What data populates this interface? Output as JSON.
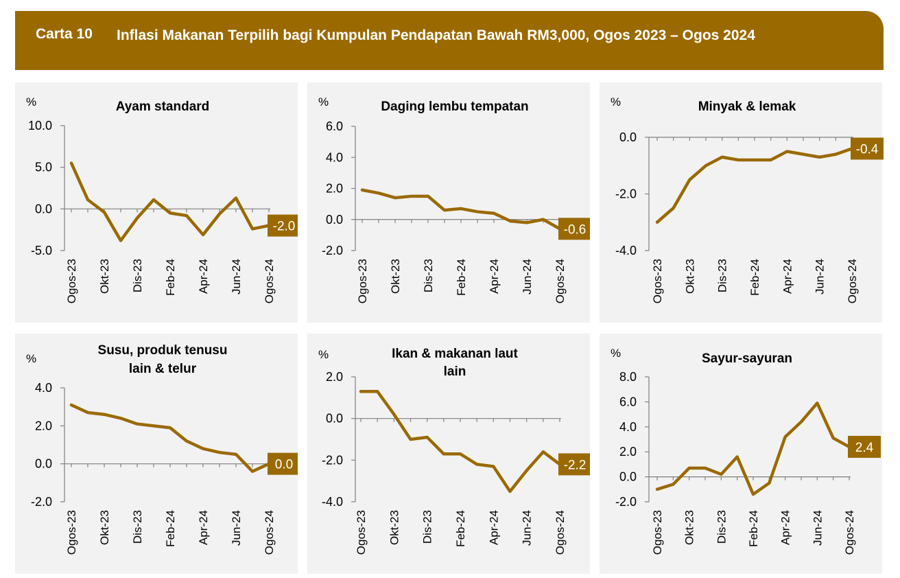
{
  "header": {
    "label": "Carta 10",
    "title": "Inflasi Makanan Terpilih bagi Kumpulan Pendapatan Bawah RM3,000, Ogos 2023 – Ogos 2024"
  },
  "colors": {
    "banner": "#9a6a00",
    "line": "#9a6a00",
    "panel": "#f2f2f2"
  },
  "chart_data": [
    {
      "type": "line",
      "title": "Ayam standard",
      "ylabel": "%",
      "ylim": [
        -5,
        10
      ],
      "yticks": [
        "10.0",
        "5.0",
        "0.0",
        "-5.0"
      ],
      "ytick_values": [
        10,
        5,
        0,
        -5
      ],
      "xtick_labels": [
        "Ogos-23",
        "Okt-23",
        "Dis-23",
        "Feb-24",
        "Apr-24",
        "Jun-24",
        "Ogos-24"
      ],
      "x": [
        "Ogos-23",
        "Sep-23",
        "Okt-23",
        "Nov-23",
        "Dis-23",
        "Jan-24",
        "Feb-24",
        "Mac-24",
        "Apr-24",
        "Mei-24",
        "Jun-24",
        "Jul-24",
        "Ogos-24"
      ],
      "values": [
        5.5,
        1.1,
        -0.4,
        -3.8,
        -1.1,
        1.1,
        -0.5,
        -0.8,
        -3.1,
        -0.6,
        1.3,
        -2.4,
        -2.0
      ],
      "last_label": "-2.0"
    },
    {
      "type": "line",
      "title": "Daging lembu tempatan",
      "ylabel": "%",
      "ylim": [
        -2,
        6
      ],
      "yticks": [
        "6.0",
        "4.0",
        "2.0",
        "0.0",
        "-2.0"
      ],
      "ytick_values": [
        6,
        4,
        2,
        0,
        -2
      ],
      "xtick_labels": [
        "Ogos-23",
        "Okt-23",
        "Dis-23",
        "Feb-24",
        "Apr-24",
        "Jun-24",
        "Ogos-24"
      ],
      "x": [
        "Ogos-23",
        "Sep-23",
        "Okt-23",
        "Nov-23",
        "Dis-23",
        "Jan-24",
        "Feb-24",
        "Mac-24",
        "Apr-24",
        "Mei-24",
        "Jun-24",
        "Jul-24",
        "Ogos-24"
      ],
      "values": [
        1.9,
        1.7,
        1.4,
        1.5,
        1.5,
        0.6,
        0.7,
        0.5,
        0.4,
        -0.1,
        -0.2,
        0.0,
        -0.6
      ],
      "last_label": "-0.6"
    },
    {
      "type": "line",
      "title": "Minyak & lemak",
      "ylabel": "%",
      "ylim": [
        -4,
        0
      ],
      "yticks": [
        "0.0",
        "-2.0",
        "-4.0"
      ],
      "ytick_values": [
        0,
        -2,
        -4
      ],
      "xtick_labels": [
        "Ogos-23",
        "Okt-23",
        "Dis-23",
        "Feb-24",
        "Apr-24",
        "Jun-24",
        "Ogos-24"
      ],
      "x": [
        "Ogos-23",
        "Sep-23",
        "Okt-23",
        "Nov-23",
        "Dis-23",
        "Jan-24",
        "Feb-24",
        "Mac-24",
        "Apr-24",
        "Mei-24",
        "Jun-24",
        "Jul-24",
        "Ogos-24"
      ],
      "values": [
        -3.0,
        -2.5,
        -1.5,
        -1.0,
        -0.7,
        -0.8,
        -0.8,
        -0.8,
        -0.5,
        -0.6,
        -0.7,
        -0.6,
        -0.4
      ],
      "last_label": "-0.4"
    },
    {
      "type": "line",
      "title": "Susu, produk tenusu lain & telur",
      "title_lines": [
        "Susu, produk tenusu",
        "lain & telur"
      ],
      "ylabel": "%",
      "ylim": [
        -2,
        4
      ],
      "yticks": [
        "4.0",
        "2.0",
        "0.0",
        "-2.0"
      ],
      "ytick_values": [
        4,
        2,
        0,
        -2
      ],
      "xtick_labels": [
        "Ogos-23",
        "Okt-23",
        "Dis-23",
        "Feb-24",
        "Apr-24",
        "Jun-24",
        "Ogos-24"
      ],
      "x": [
        "Ogos-23",
        "Sep-23",
        "Okt-23",
        "Nov-23",
        "Dis-23",
        "Jan-24",
        "Feb-24",
        "Mac-24",
        "Apr-24",
        "Mei-24",
        "Jun-24",
        "Jul-24",
        "Ogos-24"
      ],
      "values": [
        3.1,
        2.7,
        2.6,
        2.4,
        2.1,
        2.0,
        1.9,
        1.2,
        0.8,
        0.6,
        0.5,
        -0.4,
        0.0
      ],
      "last_label": "0.0"
    },
    {
      "type": "line",
      "title": "Ikan & makanan laut lain",
      "title_lines": [
        "Ikan & makanan laut",
        "lain"
      ],
      "ylabel": "%",
      "ylim": [
        -4,
        2
      ],
      "yticks": [
        "2.0",
        "0.0",
        "-2.0",
        "-4.0"
      ],
      "ytick_values": [
        2,
        0,
        -2,
        -4
      ],
      "xtick_labels": [
        "Ogos-23",
        "Okt-23",
        "Dis-23",
        "Feb-24",
        "Apr-24",
        "Jun-24",
        "Ogos-24"
      ],
      "x": [
        "Ogos-23",
        "Sep-23",
        "Okt-23",
        "Nov-23",
        "Dis-23",
        "Jan-24",
        "Feb-24",
        "Mac-24",
        "Apr-24",
        "Mei-24",
        "Jun-24",
        "Jul-24",
        "Ogos-24"
      ],
      "values": [
        1.3,
        1.3,
        0.2,
        -1.0,
        -0.9,
        -1.7,
        -1.7,
        -2.2,
        -2.3,
        -3.5,
        -2.5,
        -1.6,
        -2.2
      ],
      "last_label": "-2.2"
    },
    {
      "type": "line",
      "title": "Sayur-sayuran",
      "ylabel": "%",
      "ylim": [
        -2,
        8
      ],
      "yticks": [
        "8.0",
        "6.0",
        "4.0",
        "2.0",
        "0.0",
        "-2.0"
      ],
      "ytick_values": [
        8,
        6,
        4,
        2,
        0,
        -2
      ],
      "xtick_labels": [
        "Ogos-23",
        "Okt-23",
        "Dis-23",
        "Feb-24",
        "Apr-24",
        "Jun-24",
        "Ogos-24"
      ],
      "x": [
        "Ogos-23",
        "Sep-23",
        "Okt-23",
        "Nov-23",
        "Dis-23",
        "Jan-24",
        "Feb-24",
        "Mac-24",
        "Apr-24",
        "Mei-24",
        "Jun-24",
        "Jul-24",
        "Ogos-24"
      ],
      "values": [
        -1.0,
        -0.6,
        0.7,
        0.7,
        0.2,
        1.6,
        -1.4,
        -0.5,
        3.2,
        4.4,
        5.9,
        3.1,
        2.4
      ],
      "last_label": "2.4"
    }
  ]
}
